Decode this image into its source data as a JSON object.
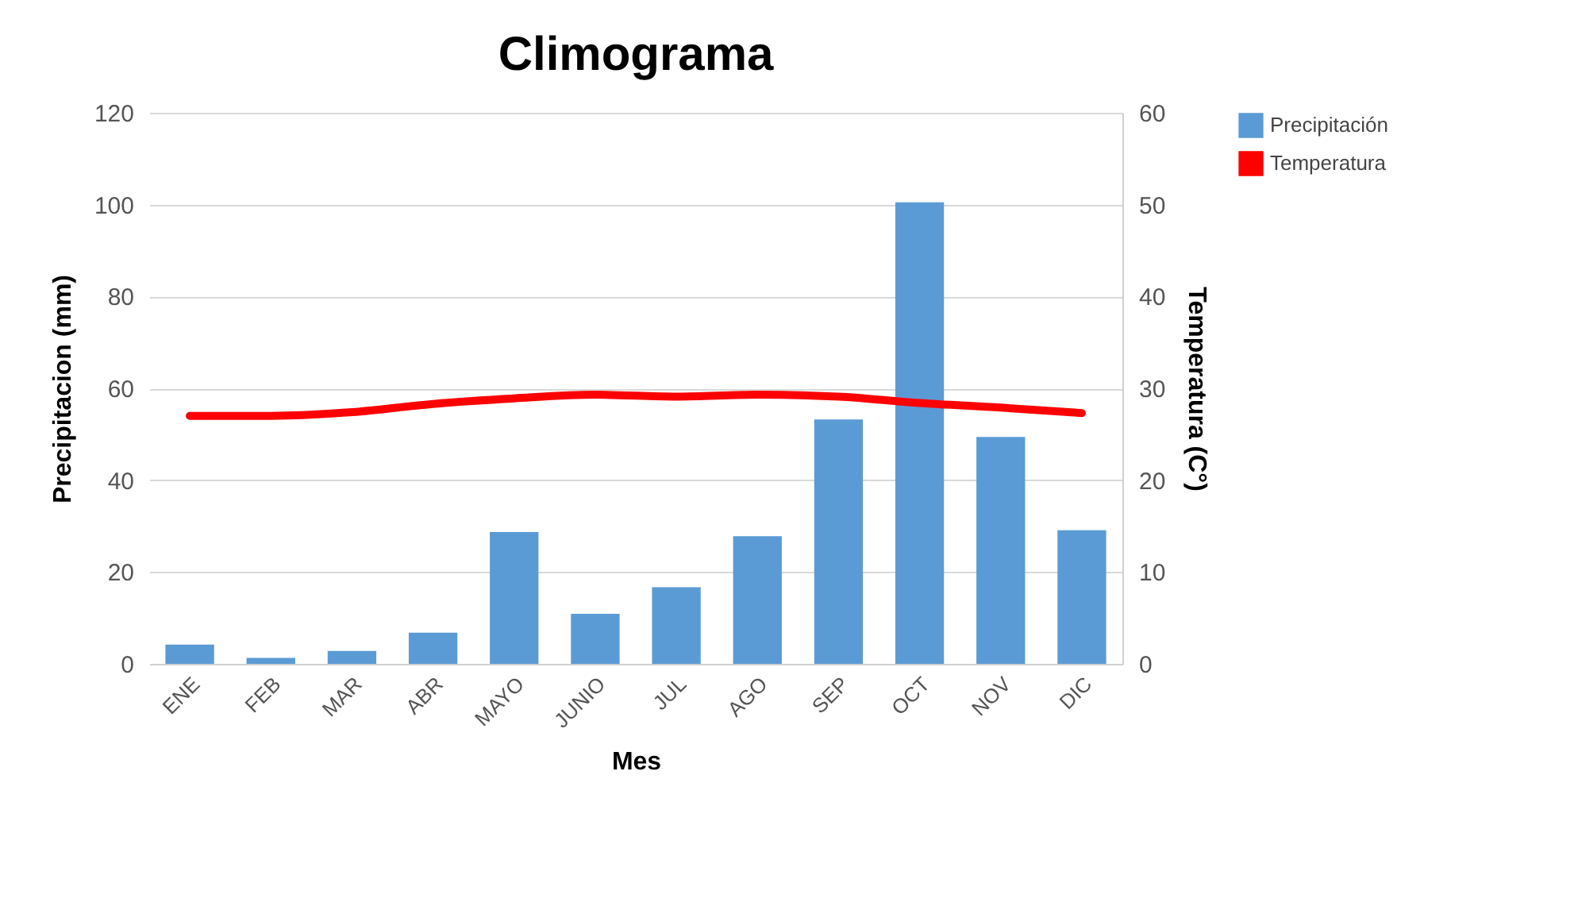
{
  "chart_data": {
    "type": "bar",
    "title": "Climograma",
    "xlabel": "Mes",
    "ylabel": "Precipitacion (mm)",
    "y2label": "Temperatura (C°)",
    "categories": [
      "ENE",
      "FEB",
      "MAR",
      "ABR",
      "MAYO",
      "JUNIO",
      "JUL",
      "AGO",
      "SEP",
      "OCT",
      "NOV",
      "DIC"
    ],
    "series": [
      {
        "name": "Precipitación",
        "color": "#5b9bd5",
        "values": [
          4.2,
          1.3,
          2.8,
          6.8,
          28.7,
          10.9,
          16.7,
          27.8,
          53.2,
          100.5,
          49.4,
          29.1
        ]
      },
      {
        "name": "Temperatura",
        "type": "line",
        "axis": "y2",
        "color": "#ff0000",
        "values": [
          27.0,
          27.0,
          27.4,
          28.3,
          28.9,
          29.3,
          29.1,
          29.3,
          29.1,
          28.4,
          27.9,
          27.3
        ]
      }
    ],
    "ylim": [
      0,
      120
    ],
    "yticks": [
      0,
      20,
      40,
      60,
      80,
      100,
      120
    ],
    "y2lim": [
      0,
      60
    ],
    "y2ticks": [
      0,
      10,
      20,
      30,
      40,
      50,
      60
    ],
    "grid": "y",
    "legend": "right"
  }
}
